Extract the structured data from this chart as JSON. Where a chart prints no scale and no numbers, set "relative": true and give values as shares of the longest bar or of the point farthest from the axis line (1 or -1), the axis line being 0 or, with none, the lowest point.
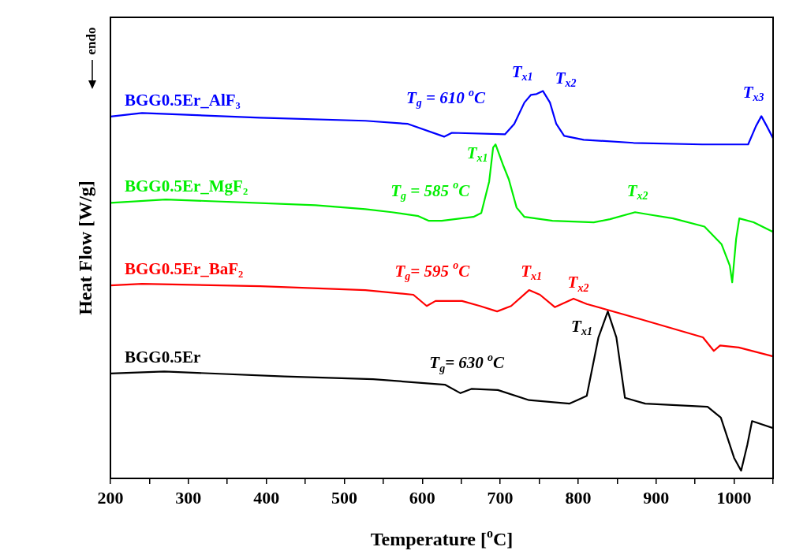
{
  "chart_data": {
    "type": "line",
    "relative": true,
    "xlabel": "Temperature [$^{o}$C]",
    "ylabel": "Heat Flow [W/g]",
    "xlim": [
      200,
      1050
    ],
    "xticks": [
      200,
      {
        "value": 250,
        "label": null
      },
      300,
      {
        "value": 350,
        "label": null
      },
      400,
      {
        "value": 450,
        "label": null
      },
      500,
      {
        "value": 550,
        "label": null
      },
      600,
      {
        "value": 650,
        "label": null
      },
      700,
      {
        "value": 750,
        "label": null
      },
      800,
      {
        "value": 850,
        "label": null
      },
      900,
      {
        "value": 950,
        "label": null
      },
      1000,
      {
        "value": 1050,
        "label": null
      }
    ],
    "grid": false,
    "legend": false,
    "marker": "none",
    "line_style": "solid",
    "series": [
      {
        "name": "BGG0.5Er_AlF₃",
        "color": "#0000ff",
        "x": [
          200,
          240.5,
          392,
          527,
          581.6,
          628,
          638,
          706,
          718,
          731,
          739.5,
          746.6,
          754.7,
          763.8,
          771.9,
          782,
          807,
          871,
          959,
          1018,
          1028,
          1035,
          1042,
          1050
        ],
        "values": [
          0.934,
          0.943,
          0.931,
          0.923,
          0.915,
          0.882,
          0.892,
          0.888,
          0.915,
          0.97,
          0.99,
          0.992,
          1.0,
          0.97,
          0.915,
          0.884,
          0.874,
          0.866,
          0.862,
          0.862,
          0.909,
          0.935,
          0.909,
          0.878
        ]
      },
      {
        "name": "BGG0.5Er_MgF₂",
        "color": "#00ee00",
        "x": [
          200,
          270.9,
          463,
          527,
          561,
          595,
          608,
          625,
          665.6,
          675.7,
          685.8,
          690.9,
          694,
          704,
          711,
          721,
          731,
          767,
          820,
          840.7,
          873,
          891,
          921.7,
          962,
          984,
          994.5,
          997.6,
          1002.6,
          1006.7,
          1025,
          1050
        ],
        "values": [
          0.711,
          0.72,
          0.705,
          0.695,
          0.687,
          0.677,
          0.665,
          0.665,
          0.675,
          0.685,
          0.766,
          0.854,
          0.862,
          0.807,
          0.772,
          0.699,
          0.675,
          0.665,
          0.661,
          0.669,
          0.687,
          0.681,
          0.671,
          0.65,
          0.604,
          0.549,
          0.506,
          0.618,
          0.671,
          0.661,
          0.636
        ]
      },
      {
        "name": "BGG0.5Er_BaF₂",
        "color": "#ff0000",
        "x": [
          200,
          240.5,
          392,
          527,
          588.6,
          605.7,
          617,
          651,
          674,
          696,
          714,
          737,
          751,
          770,
          794,
          811,
          880,
          960,
          974,
          982,
          1006,
          1050
        ],
        "values": [
          0.498,
          0.502,
          0.496,
          0.486,
          0.474,
          0.445,
          0.458,
          0.458,
          0.445,
          0.431,
          0.445,
          0.486,
          0.474,
          0.442,
          0.464,
          0.45,
          0.411,
          0.364,
          0.329,
          0.343,
          0.338,
          0.315
        ]
      },
      {
        "name": "BGG0.5Er",
        "color": "#000000",
        "x": [
          200,
          269,
          423,
          537,
          629,
          649,
          663,
          697,
          737,
          789,
          811,
          826,
          838,
          849,
          860,
          886,
          966,
          983,
          1000,
          1009,
          1017,
          1023,
          1050
        ],
        "values": [
          0.271,
          0.276,
          0.263,
          0.256,
          0.242,
          0.22,
          0.231,
          0.228,
          0.202,
          0.193,
          0.213,
          0.364,
          0.431,
          0.364,
          0.208,
          0.193,
          0.185,
          0.157,
          0.053,
          0.02,
          0.087,
          0.148,
          0.13
        ]
      }
    ],
    "annotations": [
      "endo",
      {
        "text": "T$_{g}$ = 610 $^{o}$C",
        "x": 628,
        "y": 0.882
      },
      {
        "text": "T$_{x1}$",
        "x": 739.5,
        "y": 0.99
      },
      {
        "text": "T$_{x2}$",
        "x": 754.7,
        "y": 1.0
      },
      {
        "text": "T$_{x3}$",
        "x": 1035,
        "y": 0.935
      },
      {
        "text": "T$_{x1}$",
        "x": 694,
        "y": 0.862
      },
      {
        "text": "T$_{g}$ = 585 $^{o}$C",
        "x": 608,
        "y": 0.665
      },
      {
        "text": "T$_{x2}$",
        "x": 873,
        "y": 0.687
      },
      {
        "text": "T$_{g}$= 595 $^{o}$C",
        "x": 605.7,
        "y": 0.445
      },
      {
        "text": "T$_{x1}$",
        "x": 737,
        "y": 0.486
      },
      {
        "text": "T$_{x2}$",
        "x": 794,
        "y": 0.464
      },
      {
        "text": "T$_{x1}$",
        "x": 838,
        "y": 0.431
      },
      {
        "text": "T$_{g}$= 630 $^{o}$C",
        "x": 649,
        "y": 0.22
      }
    ]
  }
}
